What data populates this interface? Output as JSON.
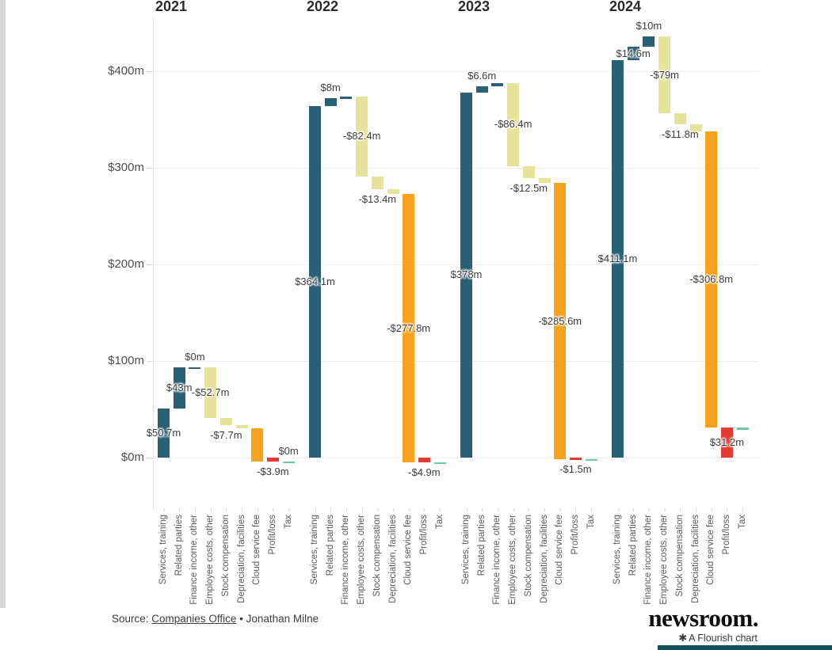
{
  "chart_data": {
    "type": "bar",
    "subtype": "waterfall",
    "title": "",
    "unit": "$m",
    "categories": [
      "Services, training",
      "Related parties",
      "Finance income, other",
      "Employee costs, other",
      "Stock compensation",
      "Depreciation, facilities",
      "Cloud service fee",
      "Profit/loss",
      "Tax"
    ],
    "y_axis": {
      "ticks": [
        {
          "label": "$400m",
          "value": 400
        },
        {
          "label": "$300m",
          "value": 300
        },
        {
          "label": "$200m",
          "value": 200
        },
        {
          "label": "$100m",
          "value": 100
        },
        {
          "label": "$0m",
          "value": 0
        }
      ],
      "ylim": [
        -15,
        450
      ],
      "grid": true
    },
    "colors": {
      "income": "#2a6075",
      "costs": "#e6e39b",
      "cloud_fee": "#f9a21c",
      "profit_loss": "#e23b31",
      "tax": "#6ec7a5"
    },
    "legend_position": "none",
    "groups": [
      {
        "year": "2021",
        "bars": [
          {
            "category": "Services, training",
            "value": 50.7,
            "start": 0,
            "end": 50.7,
            "color": "income",
            "label": "$50.7m",
            "label_pos": "center"
          },
          {
            "category": "Related parties",
            "value": 43,
            "start": 50.7,
            "end": 93.7,
            "color": "income",
            "label": "$43m",
            "label_pos": "center"
          },
          {
            "category": "Finance income, other",
            "value": 0,
            "start": 93.7,
            "end": 93.7,
            "color": "income",
            "label": "$0m",
            "label_pos": "above"
          },
          {
            "category": "Employee costs, other",
            "value": -52.7,
            "start": 93.7,
            "end": 41.0,
            "color": "costs",
            "label": "-$52.7m",
            "label_pos": "center"
          },
          {
            "category": "Stock compensation",
            "value": -7.7,
            "start": 41.0,
            "end": 33.3,
            "color": "costs",
            "label": "-$7.7m",
            "label_pos": "below"
          },
          {
            "category": "Depreciation, facilities",
            "value": -3.0,
            "start": 33.3,
            "end": 30.3,
            "color": "costs",
            "label": null
          },
          {
            "category": "Cloud service fee",
            "value": -34.2,
            "start": 30.3,
            "end": -3.9,
            "color": "cloud_fee",
            "label": null
          },
          {
            "category": "Profit/loss",
            "value": -3.9,
            "start": 0,
            "end": -3.9,
            "color": "profit_loss",
            "label": "-$3.9m",
            "label_pos": "below",
            "total": true
          },
          {
            "category": "Tax",
            "value": 0,
            "start": -3.9,
            "end": -3.9,
            "color": "tax",
            "label": "$0m",
            "label_pos": "above"
          }
        ]
      },
      {
        "year": "2022",
        "bars": [
          {
            "category": "Services, training",
            "value": 364.1,
            "start": 0,
            "end": 364.1,
            "color": "income",
            "label": "$364.1m",
            "label_pos": "center"
          },
          {
            "category": "Related parties",
            "value": 8,
            "start": 364.1,
            "end": 372.1,
            "color": "income",
            "label": "$8m",
            "label_pos": "above"
          },
          {
            "category": "Finance income, other",
            "value": 1.5,
            "start": 372.1,
            "end": 373.6,
            "color": "income",
            "label": null
          },
          {
            "category": "Employee costs, other",
            "value": -82.4,
            "start": 373.6,
            "end": 291.2,
            "color": "costs",
            "label": "-$82.4m",
            "label_pos": "center"
          },
          {
            "category": "Stock compensation",
            "value": -13.4,
            "start": 291.2,
            "end": 277.8,
            "color": "costs",
            "label": "-$13.4m",
            "label_pos": "below"
          },
          {
            "category": "Depreciation, facilities",
            "value": -4.9,
            "start": 277.8,
            "end": 272.9,
            "color": "costs",
            "label": null
          },
          {
            "category": "Cloud service fee",
            "value": -277.8,
            "start": 272.9,
            "end": -4.9,
            "color": "cloud_fee",
            "label": "-$277.8m",
            "label_pos": "center"
          },
          {
            "category": "Profit/loss",
            "value": -4.9,
            "start": 0,
            "end": -4.9,
            "color": "profit_loss",
            "label": "-$4.9m",
            "label_pos": "below",
            "total": true
          },
          {
            "category": "Tax",
            "value": -1.5,
            "start": -4.9,
            "end": -6.4,
            "color": "tax",
            "label": null
          }
        ]
      },
      {
        "year": "2023",
        "bars": [
          {
            "category": "Services, training",
            "value": 378,
            "start": 0,
            "end": 378,
            "color": "income",
            "label": "$378m",
            "label_pos": "center"
          },
          {
            "category": "Related parties",
            "value": 6.6,
            "start": 378,
            "end": 384.6,
            "color": "income",
            "label": "$6.6m",
            "label_pos": "above"
          },
          {
            "category": "Finance income, other",
            "value": 3.5,
            "start": 384.6,
            "end": 388.1,
            "color": "income",
            "label": null
          },
          {
            "category": "Employee costs, other",
            "value": -86.4,
            "start": 388.1,
            "end": 301.7,
            "color": "costs",
            "label": "-$86.4m",
            "label_pos": "center"
          },
          {
            "category": "Stock compensation",
            "value": -12.5,
            "start": 301.7,
            "end": 289.2,
            "color": "costs",
            "label": "-$12.5m",
            "label_pos": "below"
          },
          {
            "category": "Depreciation, facilities",
            "value": -5.1,
            "start": 289.2,
            "end": 284.1,
            "color": "costs",
            "label": null
          },
          {
            "category": "Cloud service fee",
            "value": -285.6,
            "start": 284.1,
            "end": -1.5,
            "color": "cloud_fee",
            "label": "-$285.6m",
            "label_pos": "center"
          },
          {
            "category": "Profit/loss",
            "value": -1.5,
            "start": 0,
            "end": -1.5,
            "color": "profit_loss",
            "label": "-$1.5m",
            "label_pos": "below",
            "total": true
          },
          {
            "category": "Tax",
            "value": -1.0,
            "start": -1.5,
            "end": -2.5,
            "color": "tax",
            "label": null
          }
        ]
      },
      {
        "year": "2024",
        "bars": [
          {
            "category": "Services, training",
            "value": 411.1,
            "start": 0,
            "end": 411.1,
            "color": "income",
            "label": "$411.1m",
            "label_pos": "center"
          },
          {
            "category": "Related parties",
            "value": 14.6,
            "start": 411.1,
            "end": 425.7,
            "color": "income",
            "label": "$14.6m",
            "label_pos": "center"
          },
          {
            "category": "Finance income, other",
            "value": 10,
            "start": 425.7,
            "end": 435.7,
            "color": "income",
            "label": "$10m",
            "label_pos": "above"
          },
          {
            "category": "Employee costs, other",
            "value": -79,
            "start": 435.7,
            "end": 356.7,
            "color": "costs",
            "label": "-$79m",
            "label_pos": "center"
          },
          {
            "category": "Stock compensation",
            "value": -11.8,
            "start": 356.7,
            "end": 344.9,
            "color": "costs",
            "label": "-$11.8m",
            "label_pos": "below"
          },
          {
            "category": "Depreciation, facilities",
            "value": -6.9,
            "start": 344.9,
            "end": 338.0,
            "color": "costs",
            "label": null
          },
          {
            "category": "Cloud service fee",
            "value": -306.8,
            "start": 338.0,
            "end": 31.2,
            "color": "cloud_fee",
            "label": "-$306.8m",
            "label_pos": "center"
          },
          {
            "category": "Profit/loss",
            "value": 31.2,
            "start": 0,
            "end": 31.2,
            "color": "profit_loss",
            "label": "$31.2m",
            "label_pos": "center",
            "total": true
          },
          {
            "category": "Tax",
            "value": -2.5,
            "start": 31.2,
            "end": 28.7,
            "color": "tax",
            "label": null
          }
        ]
      }
    ]
  },
  "footer": {
    "source_prefix": "Source: ",
    "source_link": "Companies Office",
    "source_separator": " • ",
    "source_author": "Jonathan Milne",
    "logo_text": "newsroom.",
    "flourish_icon": "✱",
    "flourish_badge": "A Flourish chart"
  }
}
